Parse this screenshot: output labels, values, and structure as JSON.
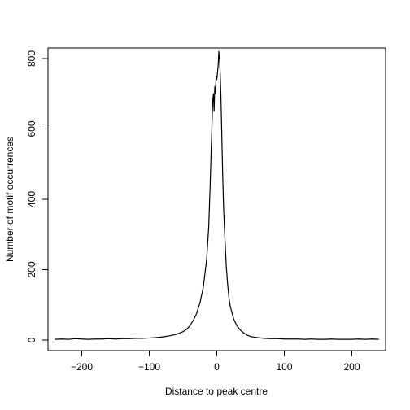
{
  "chart_data": {
    "type": "line",
    "title": "",
    "xlabel": "Distance to peak centre",
    "ylabel": "Number of motif occurrences",
    "xlim": [
      -250,
      250
    ],
    "ylim": [
      -30,
      830
    ],
    "x_ticks": [
      -200,
      -100,
      0,
      100,
      200
    ],
    "y_ticks": [
      0,
      200,
      400,
      600,
      800
    ],
    "x_tick_labels": [
      "−200",
      "−100",
      "0",
      "100",
      "200"
    ],
    "y_tick_labels": [
      "0",
      "200",
      "400",
      "600",
      "800"
    ],
    "grid": false,
    "line_color": "#000000",
    "series": [
      {
        "x": [
          -240,
          -230,
          -220,
          -210,
          -200,
          -190,
          -180,
          -170,
          -160,
          -150,
          -140,
          -130,
          -120,
          -110,
          -100,
          -90,
          -80,
          -70,
          -60,
          -50,
          -45,
          -40,
          -35,
          -30,
          -25,
          -20,
          -15,
          -12,
          -10,
          -8,
          -6,
          -5,
          -4,
          -3,
          -2,
          -1,
          0,
          1,
          2,
          3,
          4,
          5,
          6,
          7,
          8,
          9,
          10,
          12,
          14,
          16,
          18,
          20,
          25,
          30,
          35,
          40,
          45,
          50,
          60,
          70,
          80,
          90,
          100,
          110,
          120,
          130,
          140,
          150,
          160,
          170,
          180,
          190,
          200,
          210,
          220,
          230,
          240
        ],
        "y": [
          2,
          3,
          2,
          4,
          3,
          2,
          3,
          3,
          4,
          3,
          4,
          4,
          5,
          5,
          6,
          7,
          9,
          12,
          16,
          24,
          30,
          40,
          55,
          75,
          105,
          150,
          230,
          320,
          430,
          560,
          680,
          700,
          650,
          720,
          700,
          750,
          740,
          760,
          780,
          820,
          800,
          760,
          700,
          620,
          530,
          450,
          380,
          290,
          210,
          160,
          120,
          95,
          60,
          40,
          28,
          20,
          14,
          10,
          7,
          5,
          4,
          4,
          3,
          3,
          3,
          2,
          3,
          2,
          2,
          3,
          2,
          2,
          2,
          3,
          2,
          3,
          2
        ]
      }
    ]
  }
}
